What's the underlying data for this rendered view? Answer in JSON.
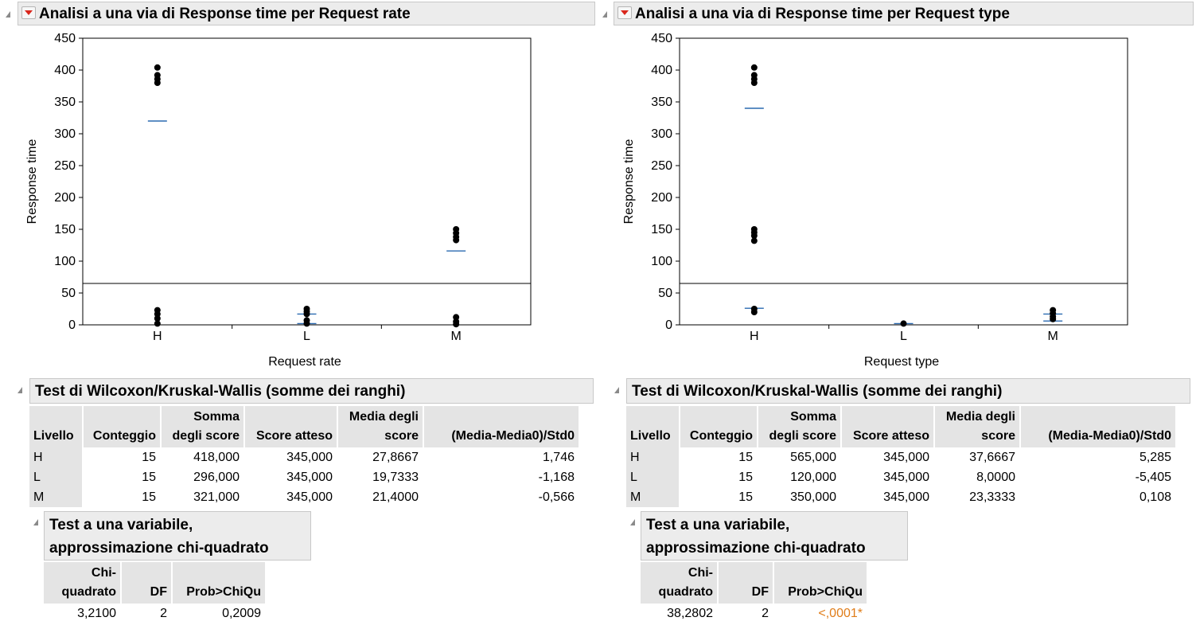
{
  "panels": [
    {
      "title": "Analisi a una via di Response time per Request rate",
      "chart_data": {
        "type": "scatter",
        "title": "",
        "xlabel": "Request rate",
        "ylabel": "Response time",
        "categories": [
          "H",
          "L",
          "M"
        ],
        "ylim": [
          0,
          450
        ],
        "yticks": [
          0,
          50,
          100,
          150,
          200,
          250,
          300,
          350,
          400,
          450
        ],
        "grand_mean": 65,
        "points": [
          {
            "x": "H",
            "y": 404
          },
          {
            "x": "H",
            "y": 392
          },
          {
            "x": "H",
            "y": 386
          },
          {
            "x": "H",
            "y": 380
          },
          {
            "x": "H",
            "y": 23
          },
          {
            "x": "H",
            "y": 17
          },
          {
            "x": "H",
            "y": 10
          },
          {
            "x": "H",
            "y": 2
          },
          {
            "x": "L",
            "y": 25
          },
          {
            "x": "L",
            "y": 21
          },
          {
            "x": "L",
            "y": 17
          },
          {
            "x": "L",
            "y": 7
          },
          {
            "x": "L",
            "y": 2
          },
          {
            "x": "M",
            "y": 150
          },
          {
            "x": "M",
            "y": 144
          },
          {
            "x": "M",
            "y": 138
          },
          {
            "x": "M",
            "y": 133
          },
          {
            "x": "M",
            "y": 12
          },
          {
            "x": "M",
            "y": 5
          },
          {
            "x": "M",
            "y": 1
          }
        ],
        "means": [
          {
            "x": "H",
            "y": 320
          },
          {
            "x": "L",
            "y": 17
          },
          {
            "x": "L",
            "y": 2
          },
          {
            "x": "M",
            "y": 116
          }
        ]
      },
      "wilcoxon": {
        "title": "Test di Wilcoxon/Kruskal-Wallis (somme dei ranghi)",
        "headers": [
          "Livello",
          "Conteggio",
          "Somma degli score",
          "Score atteso",
          "Media degli score",
          "(Media-Media0)/Std0"
        ],
        "rows": [
          [
            "H",
            "15",
            "418,000",
            "345,000",
            "27,8667",
            "1,746"
          ],
          [
            "L",
            "15",
            "296,000",
            "345,000",
            "19,7333",
            "-1,168"
          ],
          [
            "M",
            "15",
            "321,000",
            "345,000",
            "21,4000",
            "-0,566"
          ]
        ]
      },
      "chi": {
        "title_line1": "Test a una variabile,",
        "title_line2": "approssimazione chi-quadrato",
        "headers": [
          "Chi-quadrato",
          "DF",
          "Prob>ChiQu"
        ],
        "values": [
          "3,2100",
          "2",
          "0,2009"
        ],
        "significant": false
      }
    },
    {
      "title": "Analisi a una via di Response time per Request type",
      "chart_data": {
        "type": "scatter",
        "title": "",
        "xlabel": "Request type",
        "ylabel": "Response time",
        "categories": [
          "H",
          "L",
          "M"
        ],
        "ylim": [
          0,
          450
        ],
        "yticks": [
          0,
          50,
          100,
          150,
          200,
          250,
          300,
          350,
          400,
          450
        ],
        "grand_mean": 65,
        "points": [
          {
            "x": "H",
            "y": 404
          },
          {
            "x": "H",
            "y": 392
          },
          {
            "x": "H",
            "y": 386
          },
          {
            "x": "H",
            "y": 380
          },
          {
            "x": "H",
            "y": 150
          },
          {
            "x": "H",
            "y": 145
          },
          {
            "x": "H",
            "y": 140
          },
          {
            "x": "H",
            "y": 132
          },
          {
            "x": "H",
            "y": 25
          },
          {
            "x": "H",
            "y": 20
          },
          {
            "x": "L",
            "y": 2
          },
          {
            "x": "M",
            "y": 23
          },
          {
            "x": "M",
            "y": 18
          },
          {
            "x": "M",
            "y": 13
          },
          {
            "x": "M",
            "y": 9
          }
        ],
        "means": [
          {
            "x": "H",
            "y": 340
          },
          {
            "x": "H",
            "y": 26
          },
          {
            "x": "L",
            "y": 2
          },
          {
            "x": "M",
            "y": 17
          },
          {
            "x": "M",
            "y": 6
          }
        ]
      },
      "wilcoxon": {
        "title": "Test di Wilcoxon/Kruskal-Wallis (somme dei ranghi)",
        "headers": [
          "Livello",
          "Conteggio",
          "Somma degli score",
          "Score atteso",
          "Media degli score",
          "(Media-Media0)/Std0"
        ],
        "rows": [
          [
            "H",
            "15",
            "565,000",
            "345,000",
            "37,6667",
            "5,285"
          ],
          [
            "L",
            "15",
            "120,000",
            "345,000",
            "8,0000",
            "-5,405"
          ],
          [
            "M",
            "15",
            "350,000",
            "345,000",
            "23,3333",
            "0,108"
          ]
        ]
      },
      "chi": {
        "title_line1": "Test a una variabile,",
        "title_line2": "approssimazione chi-quadrato",
        "headers": [
          "Chi-quadrato",
          "DF",
          "Prob>ChiQu"
        ],
        "values": [
          "38,2802",
          "2",
          "<,0001*"
        ],
        "significant": true
      }
    }
  ],
  "colors": {
    "mean_line": "#2a6ab0",
    "significant_p": "#e07d1a",
    "header_bg": "#e4e4e4",
    "point": "#000000"
  }
}
